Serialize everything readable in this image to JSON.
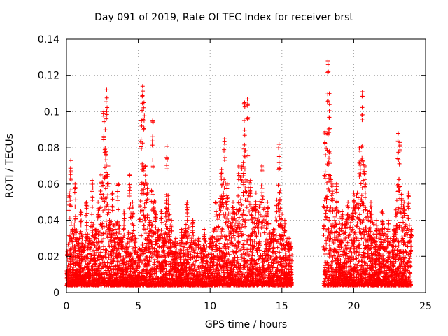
{
  "chart_data": {
    "type": "scatter",
    "title": "Day 091 of 2019, Rate Of TEC Index for receiver brst",
    "xlabel": "GPS time / hours",
    "ylabel": "ROTI / TECUs",
    "xlim": [
      0,
      25
    ],
    "ylim": [
      0,
      0.14
    ],
    "xticks": [
      0,
      5,
      10,
      15,
      20,
      25
    ],
    "yticks": [
      0,
      0.02,
      0.04,
      0.06,
      0.08,
      0.1,
      0.12,
      0.14
    ],
    "xtick_labels": [
      "0",
      "5",
      "10",
      "15",
      "20",
      "25"
    ],
    "ytick_labels": [
      "0",
      "0.02",
      "0.04",
      "0.06",
      "0.08",
      "0.1",
      "0.12",
      "0.14"
    ],
    "grid": true,
    "marker": "+",
    "color": "#ff0000",
    "series": [
      {
        "name": "ROTI",
        "x": [
          0.05,
          0.2,
          0.3,
          0.45,
          0.6,
          0.8,
          1.0,
          1.2,
          1.4,
          1.6,
          1.8,
          2.0,
          2.2,
          2.4,
          2.6,
          2.7,
          2.8,
          2.9,
          3.0,
          3.2,
          3.4,
          3.6,
          3.8,
          4.0,
          4.2,
          4.4,
          4.6,
          4.8,
          5.0,
          5.2,
          5.3,
          5.4,
          5.5,
          5.6,
          5.8,
          6.0,
          6.2,
          6.4,
          6.6,
          6.8,
          7.0,
          7.3,
          7.6,
          8.0,
          8.4,
          8.8,
          9.2,
          9.6,
          10.0,
          10.4,
          10.8,
          11.0,
          11.2,
          11.6,
          12.0,
          12.4,
          12.6,
          12.8,
          13.2,
          13.6,
          14.0,
          14.4,
          14.8,
          15.2,
          15.5,
          18.0,
          18.2,
          18.3,
          18.5,
          18.8,
          19.2,
          19.6,
          20.0,
          20.4,
          20.6,
          20.8,
          21.2,
          21.6,
          22.0,
          22.4,
          22.8,
          23.1,
          23.2,
          23.5,
          23.8,
          24.0
        ],
        "y": [
          0.012,
          0.055,
          0.073,
          0.035,
          0.06,
          0.03,
          0.045,
          0.025,
          0.05,
          0.03,
          0.062,
          0.035,
          0.05,
          0.065,
          0.1,
          0.09,
          0.112,
          0.07,
          0.04,
          0.055,
          0.035,
          0.06,
          0.03,
          0.045,
          0.025,
          0.065,
          0.05,
          0.03,
          0.02,
          0.095,
          0.114,
          0.105,
          0.07,
          0.06,
          0.04,
          0.095,
          0.05,
          0.035,
          0.045,
          0.03,
          0.081,
          0.04,
          0.03,
          0.035,
          0.05,
          0.04,
          0.03,
          0.035,
          0.03,
          0.05,
          0.068,
          0.085,
          0.06,
          0.05,
          0.07,
          0.105,
          0.107,
          0.062,
          0.055,
          0.07,
          0.05,
          0.035,
          0.082,
          0.04,
          0.03,
          0.089,
          0.128,
          0.11,
          0.06,
          0.06,
          0.045,
          0.05,
          0.055,
          0.08,
          0.111,
          0.07,
          0.05,
          0.04,
          0.045,
          0.04,
          0.035,
          0.088,
          0.083,
          0.05,
          0.055,
          0.035
        ],
        "gaps": [
          [
            15.7,
            17.9
          ]
        ]
      }
    ]
  }
}
